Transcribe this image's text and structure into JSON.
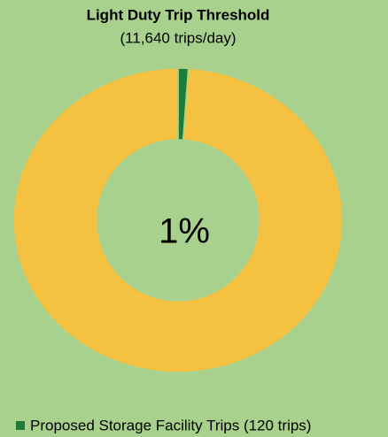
{
  "chart_data": {
    "type": "donut",
    "title": "Light Duty Trip Threshold",
    "subtitle": "(11,640 trips/day)",
    "series": [
      {
        "name": "Proposed Storage Facility Trips (120 trips)",
        "color": "#1e7c3a"
      },
      {
        "name": null,
        "color": "#f4c141"
      }
    ],
    "values": [
      1,
      99
    ],
    "value_labels": [
      "1%",
      null
    ],
    "legend": "bottom"
  }
}
